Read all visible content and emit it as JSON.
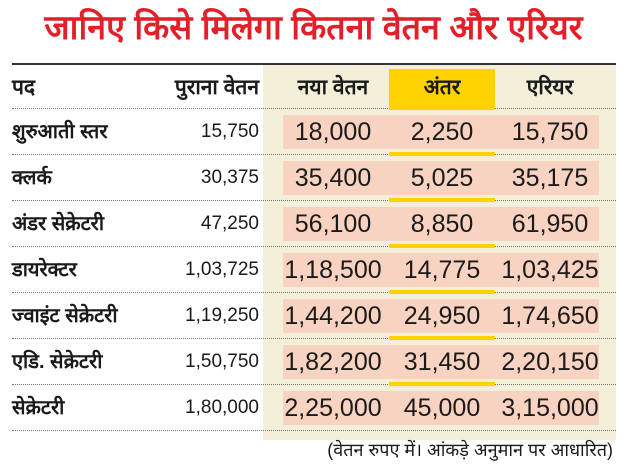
{
  "title": "जानिए किसे मिलेगा कितना वेतन और एरियर",
  "headers": [
    "पद",
    "पुराना वेतन",
    "नया वेतन",
    "अंतर",
    "एरियर"
  ],
  "rows": [
    [
      "शुरुआती स्तर",
      "15,750",
      "18,000",
      "2,250",
      "15,750"
    ],
    [
      "क्लर्क",
      "30,375",
      "35,400",
      "5,025",
      "35,175"
    ],
    [
      "अंडर सेक्रेटरी",
      "47,250",
      "56,100",
      "8,850",
      "61,950"
    ],
    [
      "डायरेक्टर",
      "1,03,725",
      "1,18,500",
      "14,775",
      "1,03,425"
    ],
    [
      "ज्वाइंट सेक्रेटरी",
      "1,19,250",
      "1,44,200",
      "24,950",
      "1,74,650"
    ],
    [
      "एडि. सेक्रेटरी",
      "1,50,750",
      "1,82,200",
      "31,450",
      "2,20,150"
    ],
    [
      "सेक्रेटरी",
      "1,80,000",
      "2,25,000",
      "45,000",
      "3,15,000"
    ]
  ],
  "footnote": "(वेतन रुपए में। आंकड़े अनुमान पर आधारित)",
  "colors": {
    "title": "#e3202a",
    "band": "#f4efd9",
    "highlight": "#ffd200",
    "cell": "#f9d3c1"
  }
}
